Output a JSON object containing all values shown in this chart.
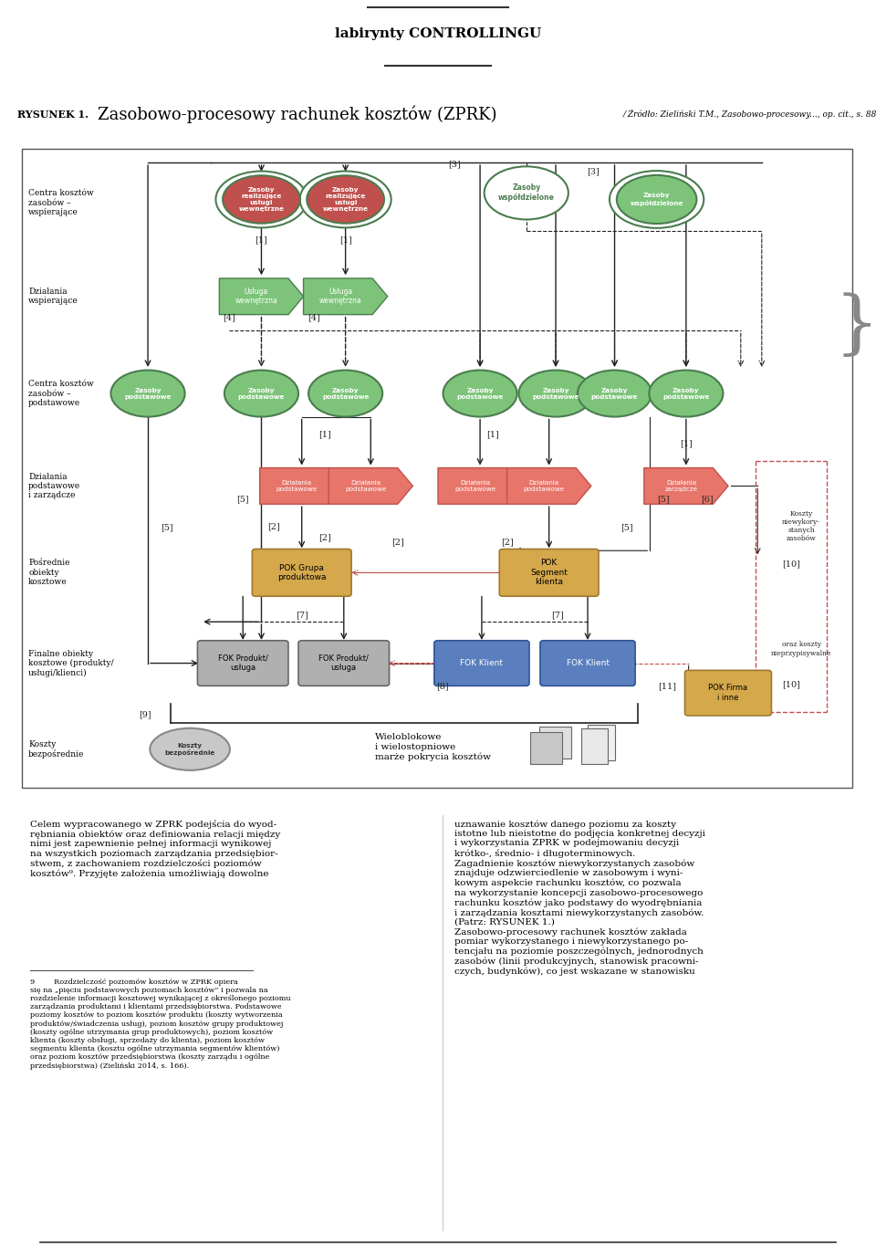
{
  "page_title": "labirynty CONTROLLINGU",
  "figure_label": "RYSUNEK 1.",
  "figure_title": "Zasobowo-procesowy rachunek kosztow (ZPRK)",
  "figure_source": "/ Zrodlo: Zielinski T.M., Zasobowo-procesowy..., op. cit., s. 88",
  "background_color": "#ffffff",
  "green_dark": "#4a7c4e",
  "green_light": "#7dc47a",
  "pink_action": "#e8756a",
  "pink_action_stroke": "#c0504d",
  "gold_pok": "#d4a84b",
  "gold_pok_stroke": "#a07830",
  "gray_fok": "#b0b0b0",
  "gray_fok_stroke": "#666666",
  "blue_fok": "#5b7fbe",
  "blue_fok_stroke": "#2f5496",
  "red_inner": "#c0504d"
}
